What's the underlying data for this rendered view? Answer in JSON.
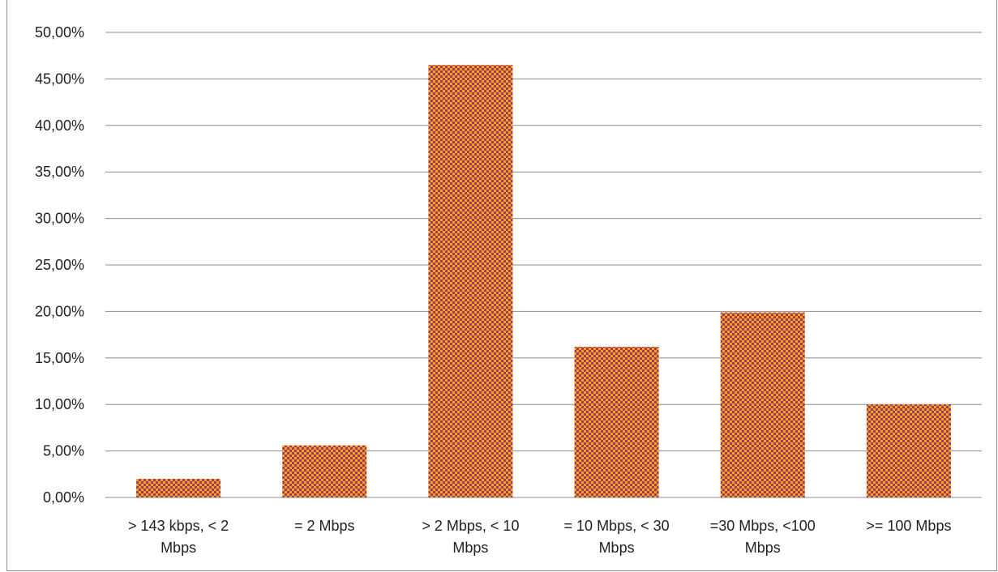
{
  "chart_data": {
    "type": "bar",
    "title": "",
    "categories": [
      [
        "> 143 kbps,  < 2",
        "Mbps"
      ],
      [
        "= 2 Mbps"
      ],
      [
        "> 2 Mbps, < 10",
        "Mbps"
      ],
      [
        "= 10 Mbps, < 30",
        "Mbps"
      ],
      [
        "=30 Mbps, <100",
        "Mbps"
      ],
      [
        ">= 100 Mbps"
      ]
    ],
    "values": [
      0.02,
      0.056,
      0.465,
      0.162,
      0.199,
      0.1
    ],
    "ylim": [
      0,
      0.5
    ],
    "yticks": [
      "0,00%",
      "5,00%",
      "10,00%",
      "15,00%",
      "20,00%",
      "25,00%",
      "30,00%",
      "35,00%",
      "40,00%",
      "45,00%",
      "50,00%"
    ],
    "grid": true,
    "legend": "none",
    "colors": {
      "bar_primary": "#f7a21b",
      "bar_secondary": "#9b3a63",
      "grid": "#8c8c8c"
    }
  }
}
